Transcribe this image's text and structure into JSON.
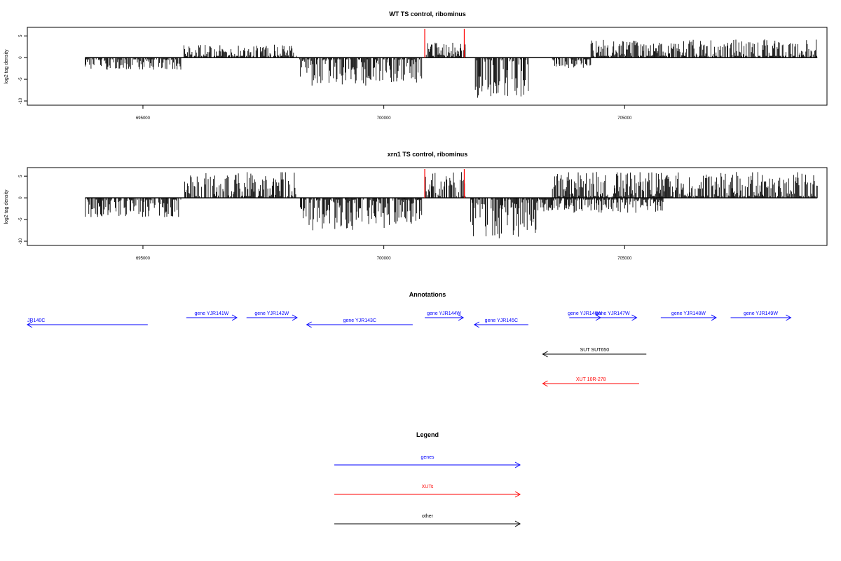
{
  "chart_data": [
    {
      "type": "bar",
      "title": "WT TS control, ribominus",
      "xlabel": "",
      "ylabel": "log2 tag density",
      "xlim": [
        692600,
        709200
      ],
      "ylim": [
        -10,
        6
      ],
      "xticks": [
        695000,
        700000,
        705000
      ],
      "yticks": [
        5,
        0,
        -5,
        -10
      ],
      "grid": false,
      "baseline": 0,
      "highlight_color": "#ff0000",
      "highlight_lines": [
        700850,
        701670
      ],
      "bar_color": "#000000",
      "note": "dense per-position signal; pos/neg strand tracks",
      "segments": [
        {
          "start": 693800,
          "end": 695800,
          "strand": "neg",
          "max": 2.8
        },
        {
          "start": 695850,
          "end": 698200,
          "strand": "pos",
          "max": 3.0
        },
        {
          "start": 698250,
          "end": 700800,
          "strand": "neg",
          "max": 6.5
        },
        {
          "start": 700850,
          "end": 701700,
          "strand": "pos",
          "max": 3.5
        },
        {
          "start": 701900,
          "end": 703000,
          "strand": "neg",
          "max": 9.5
        },
        {
          "start": 703500,
          "end": 704300,
          "strand": "neg",
          "max": 2.5
        },
        {
          "start": 704300,
          "end": 709000,
          "strand": "pos",
          "max": 4.2
        }
      ]
    },
    {
      "type": "bar",
      "title": "xrn1 TS control, ribominus",
      "xlabel": "",
      "ylabel": "log2 tag density",
      "xlim": [
        692600,
        709200
      ],
      "ylim": [
        -10,
        6
      ],
      "xticks": [
        695000,
        700000,
        705000
      ],
      "yticks": [
        5,
        0,
        -5,
        -10
      ],
      "grid": false,
      "baseline": 0,
      "highlight_color": "#ff0000",
      "highlight_lines": [
        700850,
        701670
      ],
      "bar_color": "#000000",
      "segments": [
        {
          "start": 693800,
          "end": 695800,
          "strand": "neg",
          "max": 4.5
        },
        {
          "start": 695850,
          "end": 698200,
          "strand": "pos",
          "max": 6.0
        },
        {
          "start": 698250,
          "end": 700800,
          "strand": "neg",
          "max": 7.5
        },
        {
          "start": 700850,
          "end": 701700,
          "strand": "pos",
          "max": 6.0
        },
        {
          "start": 701800,
          "end": 703200,
          "strand": "neg",
          "max": 9.5
        },
        {
          "start": 703200,
          "end": 705800,
          "strand": "neg",
          "max": 3.5
        },
        {
          "start": 703500,
          "end": 709000,
          "strand": "pos",
          "max": 6.0
        }
      ]
    }
  ],
  "annotations": {
    "title": "Annotations",
    "features": [
      {
        "label": "JR140C",
        "start": 692600,
        "end": 695100,
        "strand": "-",
        "type": "gene"
      },
      {
        "label": "gene YJR141W",
        "start": 695900,
        "end": 696950,
        "strand": "+",
        "type": "gene"
      },
      {
        "label": "gene YJR142W",
        "start": 697150,
        "end": 698200,
        "strand": "+",
        "type": "gene"
      },
      {
        "label": "gene YJR143C",
        "start": 698400,
        "end": 700600,
        "strand": "-",
        "type": "gene"
      },
      {
        "label": "gene YJR144W",
        "start": 700850,
        "end": 701650,
        "strand": "+",
        "type": "gene"
      },
      {
        "label": "gene YJR145C",
        "start": 701880,
        "end": 703000,
        "strand": "-",
        "type": "gene"
      },
      {
        "label": "gene YJR146W",
        "start": 703850,
        "end": 704500,
        "strand": "+",
        "type": "gene"
      },
      {
        "label": "gene YJR147W",
        "start": 704250,
        "end": 705250,
        "strand": "+",
        "type": "gene"
      },
      {
        "label": "gene YJR148W",
        "start": 705750,
        "end": 706900,
        "strand": "+",
        "type": "gene"
      },
      {
        "label": "gene YJR149W",
        "start": 707200,
        "end": 708450,
        "strand": "+",
        "type": "gene"
      },
      {
        "label": "SUT SUT650",
        "start": 703300,
        "end": 705450,
        "strand": "-",
        "type": "other"
      },
      {
        "label": "XUT 10R-278",
        "start": 703300,
        "end": 705300,
        "strand": "-",
        "type": "xut"
      }
    ]
  },
  "legend": {
    "title": "Legend",
    "items": [
      {
        "label": "genes",
        "color": "#0000ff"
      },
      {
        "label": "XUTs",
        "color": "#ff0000"
      },
      {
        "label": "other",
        "color": "#000000"
      }
    ]
  },
  "colors": {
    "gene": "#0000ff",
    "xut": "#ff0000",
    "other": "#000000",
    "axis": "#000000"
  }
}
